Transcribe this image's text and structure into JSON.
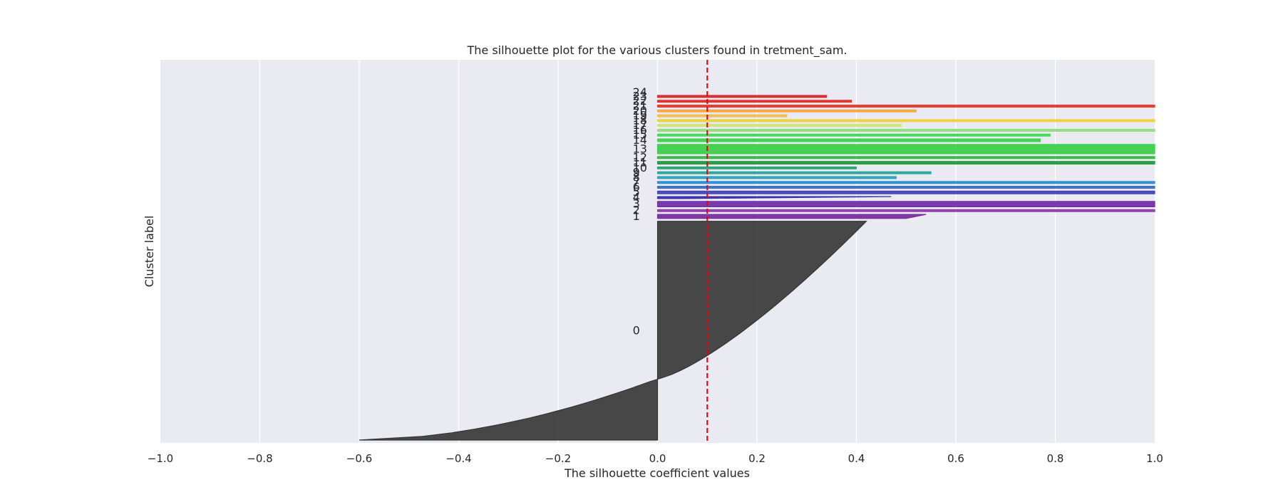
{
  "chart_data": {
    "type": "silhouette",
    "title": "The silhouette plot for the various clusters found in tretment_sam.",
    "xlabel": "The silhouette coefficient values",
    "ylabel": "Cluster label",
    "xlim": [
      -1.0,
      1.0
    ],
    "x_ticks": [
      -1.0,
      -0.8,
      -0.6,
      -0.4,
      -0.2,
      0.0,
      0.2,
      0.4,
      0.6,
      0.8,
      1.0
    ],
    "x_tick_labels": [
      "−1.0",
      "−0.8",
      "−0.6",
      "−0.4",
      "−0.2",
      "0.0",
      "0.2",
      "0.4",
      "0.6",
      "0.8",
      "1.0"
    ],
    "average_silhouette": 0.1,
    "average_line_color": "#e8000b",
    "grid": true,
    "background_color": "#eaeaf2",
    "clusters": [
      {
        "label": "0",
        "size": 330,
        "max_value": 0.42,
        "min_value": -0.6,
        "color": "#353535"
      },
      {
        "label": "1",
        "size": 6,
        "max_value": 0.54,
        "min_value": 0.5,
        "color": "#7a2e9e"
      },
      {
        "label": "2",
        "size": 3,
        "max_value": 1.0,
        "min_value": 1.0,
        "color": "#8b3ea8"
      },
      {
        "label": "3",
        "size": 8,
        "max_value": 1.0,
        "min_value": 1.0,
        "color": "#7230a8"
      },
      {
        "label": "4",
        "size": 3,
        "max_value": 0.47,
        "min_value": 0.05,
        "color": "#3a2fa8"
      },
      {
        "label": "5",
        "size": 4,
        "max_value": 1.0,
        "min_value": 1.0,
        "color": "#4545b8"
      },
      {
        "label": "6",
        "size": 3,
        "max_value": 1.0,
        "min_value": 1.0,
        "color": "#3c6fc4"
      },
      {
        "label": "7",
        "size": 3,
        "max_value": 1.0,
        "min_value": 1.0,
        "color": "#2d8cd4"
      },
      {
        "label": "8",
        "size": 3,
        "max_value": 0.48,
        "min_value": 0.48,
        "color": "#2ba3b8"
      },
      {
        "label": "9",
        "size": 3,
        "max_value": 0.55,
        "min_value": 0.55,
        "color": "#27a89a"
      },
      {
        "label": "10",
        "size": 3,
        "max_value": 0.4,
        "min_value": 0.4,
        "color": "#2b9e7a"
      },
      {
        "label": "11",
        "size": 4,
        "max_value": 1.0,
        "min_value": 1.0,
        "color": "#259a3c"
      },
      {
        "label": "12",
        "size": 3,
        "max_value": 1.0,
        "min_value": 1.0,
        "color": "#36b848"
      },
      {
        "label": "13",
        "size": 14,
        "max_value": 1.0,
        "min_value": 1.0,
        "color": "#3ecf4a"
      },
      {
        "label": "14",
        "size": 4,
        "max_value": 0.77,
        "min_value": 0.77,
        "color": "#3cd24e"
      },
      {
        "label": "15",
        "size": 3,
        "max_value": 0.79,
        "min_value": 0.79,
        "color": "#46d85a"
      },
      {
        "label": "16",
        "size": 3,
        "max_value": 1.0,
        "min_value": 1.0,
        "color": "#8fe07a"
      },
      {
        "label": "17",
        "size": 3,
        "max_value": 0.49,
        "min_value": 0.49,
        "color": "#cfe37a"
      },
      {
        "label": "18",
        "size": 3,
        "max_value": 1.0,
        "min_value": 1.0,
        "color": "#ecd23a"
      },
      {
        "label": "19",
        "size": 3,
        "max_value": 0.26,
        "min_value": 0.26,
        "color": "#f2bf4a"
      },
      {
        "label": "20",
        "size": 3,
        "max_value": 0.52,
        "min_value": 0.52,
        "color": "#f2a845"
      },
      {
        "label": "21",
        "size": 3,
        "max_value": 1.0,
        "min_value": 1.0,
        "color": "#e8392a"
      },
      {
        "label": "22",
        "size": 3,
        "max_value": 0.39,
        "min_value": 0.39,
        "color": "#e0302a"
      },
      {
        "label": "23",
        "size": 3,
        "max_value": 0.34,
        "min_value": 0.34,
        "color": "#d82a2a"
      },
      {
        "label": "24",
        "size": 0,
        "max_value": 0.0,
        "min_value": 0.0,
        "color": "#d82a2a"
      }
    ]
  }
}
